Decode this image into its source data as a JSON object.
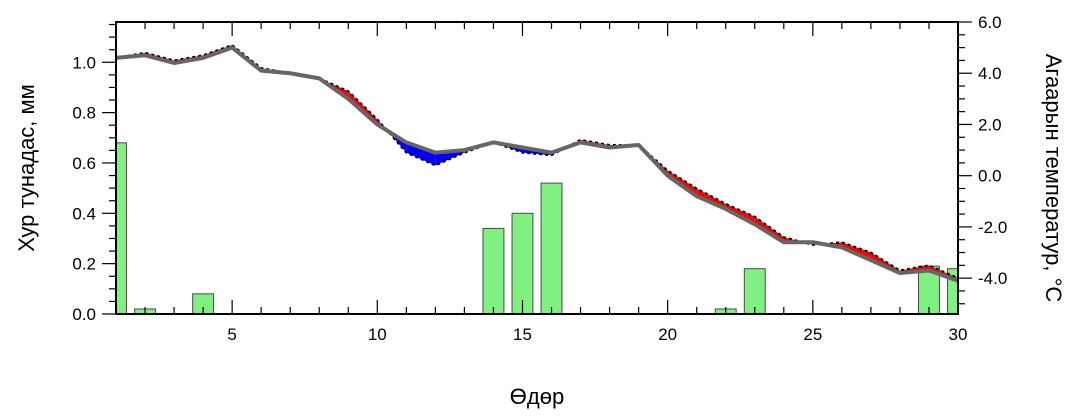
{
  "chart_data": {
    "type": "bar+line",
    "xlabel": "Өдөр",
    "ylabel_left": "Хур тунадас, мм",
    "ylabel_right": "Агаарын температур, °C",
    "xlim": [
      1,
      30
    ],
    "ylim_left": [
      0,
      1.16
    ],
    "ylim_right": [
      -5.4,
      6.0
    ],
    "x_ticks": [
      5,
      10,
      15,
      20,
      25,
      30
    ],
    "y_left_ticks": [
      0.0,
      0.2,
      0.4,
      0.6,
      0.8,
      1.0
    ],
    "y_left_tick_labels": [
      "0.0",
      "0.2",
      "0.4",
      "0.6",
      "0.8",
      "1.0"
    ],
    "y_right_ticks": [
      -4.0,
      -2.0,
      0.0,
      2.0,
      4.0,
      6.0
    ],
    "y_right_tick_labels": [
      "-4.0",
      "-2.0",
      "0.0",
      "2.0",
      "4.0",
      "6.0"
    ],
    "precipitation": {
      "name": "",
      "days": [
        1,
        2,
        4,
        14,
        15,
        16,
        22,
        23,
        29,
        30
      ],
      "values": [
        0.68,
        0.02,
        0.08,
        0.34,
        0.4,
        0.52,
        0.02,
        0.18,
        0.19,
        0.18
      ],
      "color": "#80f080"
    },
    "temperature_observed": {
      "name": "",
      "days": [
        1,
        2,
        3,
        4,
        5,
        6,
        7,
        8,
        9,
        10,
        11,
        12,
        13,
        14,
        15,
        16,
        17,
        18,
        19,
        20,
        21,
        22,
        23,
        24,
        25,
        26,
        27,
        28,
        29,
        30
      ],
      "values": [
        4.6,
        4.8,
        4.5,
        4.7,
        5.1,
        4.2,
        4.0,
        3.8,
        3.3,
        2.2,
        0.9,
        0.4,
        0.9,
        1.3,
        0.9,
        0.8,
        1.4,
        1.2,
        1.2,
        0.2,
        -0.5,
        -1.1,
        -1.6,
        -2.4,
        -2.7,
        -2.6,
        -3.0,
        -3.7,
        -3.5,
        -4.0
      ],
      "color": "#000000"
    },
    "temperature_normal": {
      "name": "",
      "days": [
        1,
        2,
        3,
        4,
        5,
        6,
        7,
        8,
        9,
        10,
        11,
        12,
        13,
        14,
        15,
        16,
        17,
        18,
        19,
        20,
        21,
        22,
        23,
        24,
        25,
        26,
        27,
        28,
        29,
        30
      ],
      "values": [
        4.6,
        4.7,
        4.4,
        4.6,
        5.0,
        4.1,
        4.0,
        3.8,
        3.0,
        2.0,
        1.3,
        0.9,
        1.0,
        1.3,
        1.1,
        0.9,
        1.3,
        1.1,
        1.2,
        0.0,
        -0.8,
        -1.3,
        -1.9,
        -2.6,
        -2.6,
        -2.8,
        -3.3,
        -3.8,
        -3.7,
        -4.1
      ],
      "color": "#666666"
    },
    "fill_colors": {
      "above": "#ff0000",
      "below": "#0000ff"
    },
    "grid": false
  }
}
